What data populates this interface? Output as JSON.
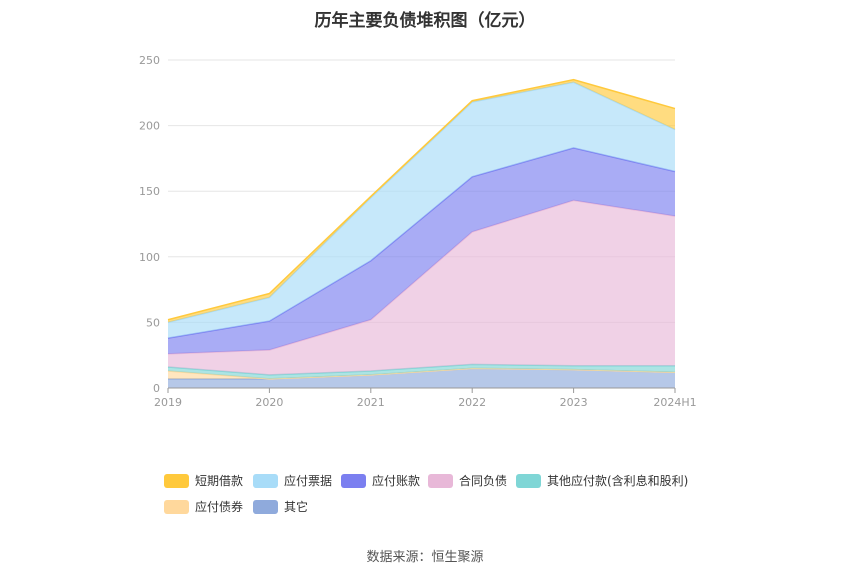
{
  "chart_data": {
    "type": "area",
    "stacked": true,
    "title": "历年主要负债堆积图（亿元）",
    "categories": [
      "2019",
      "2020",
      "2021",
      "2022",
      "2023",
      "2024H1"
    ],
    "ylim": [
      0,
      250
    ],
    "yticks": [
      0,
      50,
      100,
      150,
      200,
      250
    ],
    "grid": true,
    "legend_position": "bottom",
    "series": [
      {
        "name": "其它",
        "color": "#8faadc",
        "values": [
          7,
          7,
          10,
          15,
          14,
          12
        ]
      },
      {
        "name": "应付债券",
        "color": "#ffd89c",
        "values": [
          6,
          0,
          0,
          0,
          0,
          0
        ]
      },
      {
        "name": "其他应付款(含利息和股利)",
        "color": "#7fd6d6",
        "values": [
          3,
          3,
          3,
          3,
          3,
          5
        ]
      },
      {
        "name": "合同负债",
        "color": "#e8b8d8",
        "values": [
          10,
          19,
          39,
          101,
          126,
          114
        ]
      },
      {
        "name": "应付账款",
        "color": "#7b7ff0",
        "values": [
          12,
          22,
          45,
          42,
          40,
          34
        ]
      },
      {
        "name": "应付票据",
        "color": "#a8dcf8",
        "values": [
          12,
          18,
          48,
          57,
          50,
          32
        ]
      },
      {
        "name": "短期借款",
        "color": "#ffc93c",
        "values": [
          2,
          3,
          1,
          1,
          2,
          16
        ]
      }
    ]
  },
  "legend": [
    {
      "label": "短期借款",
      "color": "#ffc93c"
    },
    {
      "label": "应付票据",
      "color": "#a8dcf8"
    },
    {
      "label": "应付账款",
      "color": "#7b7ff0"
    },
    {
      "label": "合同负债",
      "color": "#e8b8d8"
    },
    {
      "label": "其他应付款(含利息和股利)",
      "color": "#7fd6d6"
    },
    {
      "label": "应付债券",
      "color": "#ffd89c"
    },
    {
      "label": "其它",
      "color": "#8faadc"
    }
  ],
  "source": "数据来源：恒生聚源"
}
